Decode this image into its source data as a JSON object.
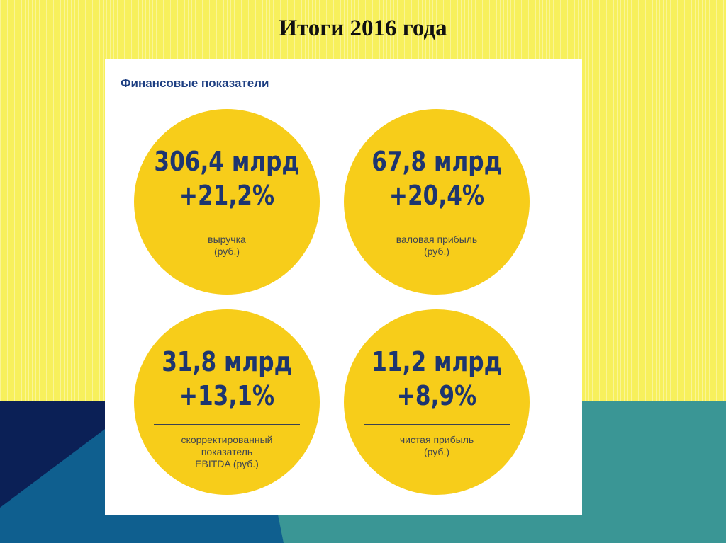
{
  "slide": {
    "title": "Итоги 2016 года"
  },
  "panel": {
    "heading": "Финансовые показатели",
    "metrics": [
      {
        "amount": "306,4 млрд",
        "change": "+21,2%",
        "label_lines": [
          "выручка",
          "(руб.)"
        ]
      },
      {
        "amount": "67,8 млрд",
        "change": "+20,4%",
        "label_lines": [
          "валовая прибыль",
          "(руб.)"
        ]
      },
      {
        "amount": "31,8 млрд",
        "change": "+13,1%",
        "label_lines": [
          "скорректированный",
          "показатель",
          "EBITDA (руб.)"
        ]
      },
      {
        "amount": "11,2 млрд",
        "change": "+8,9%",
        "label_lines": [
          "чистая прибыль",
          "(руб.)"
        ]
      }
    ]
  },
  "colors": {
    "background_yellow": "#f7f05c",
    "circle_yellow": "#f7cd1a",
    "number_navy": "#1d3570",
    "heading_blue": "#1e3f82",
    "navy": "#0b2056",
    "blue": "#0f5f8f",
    "teal": "#3a9695"
  }
}
